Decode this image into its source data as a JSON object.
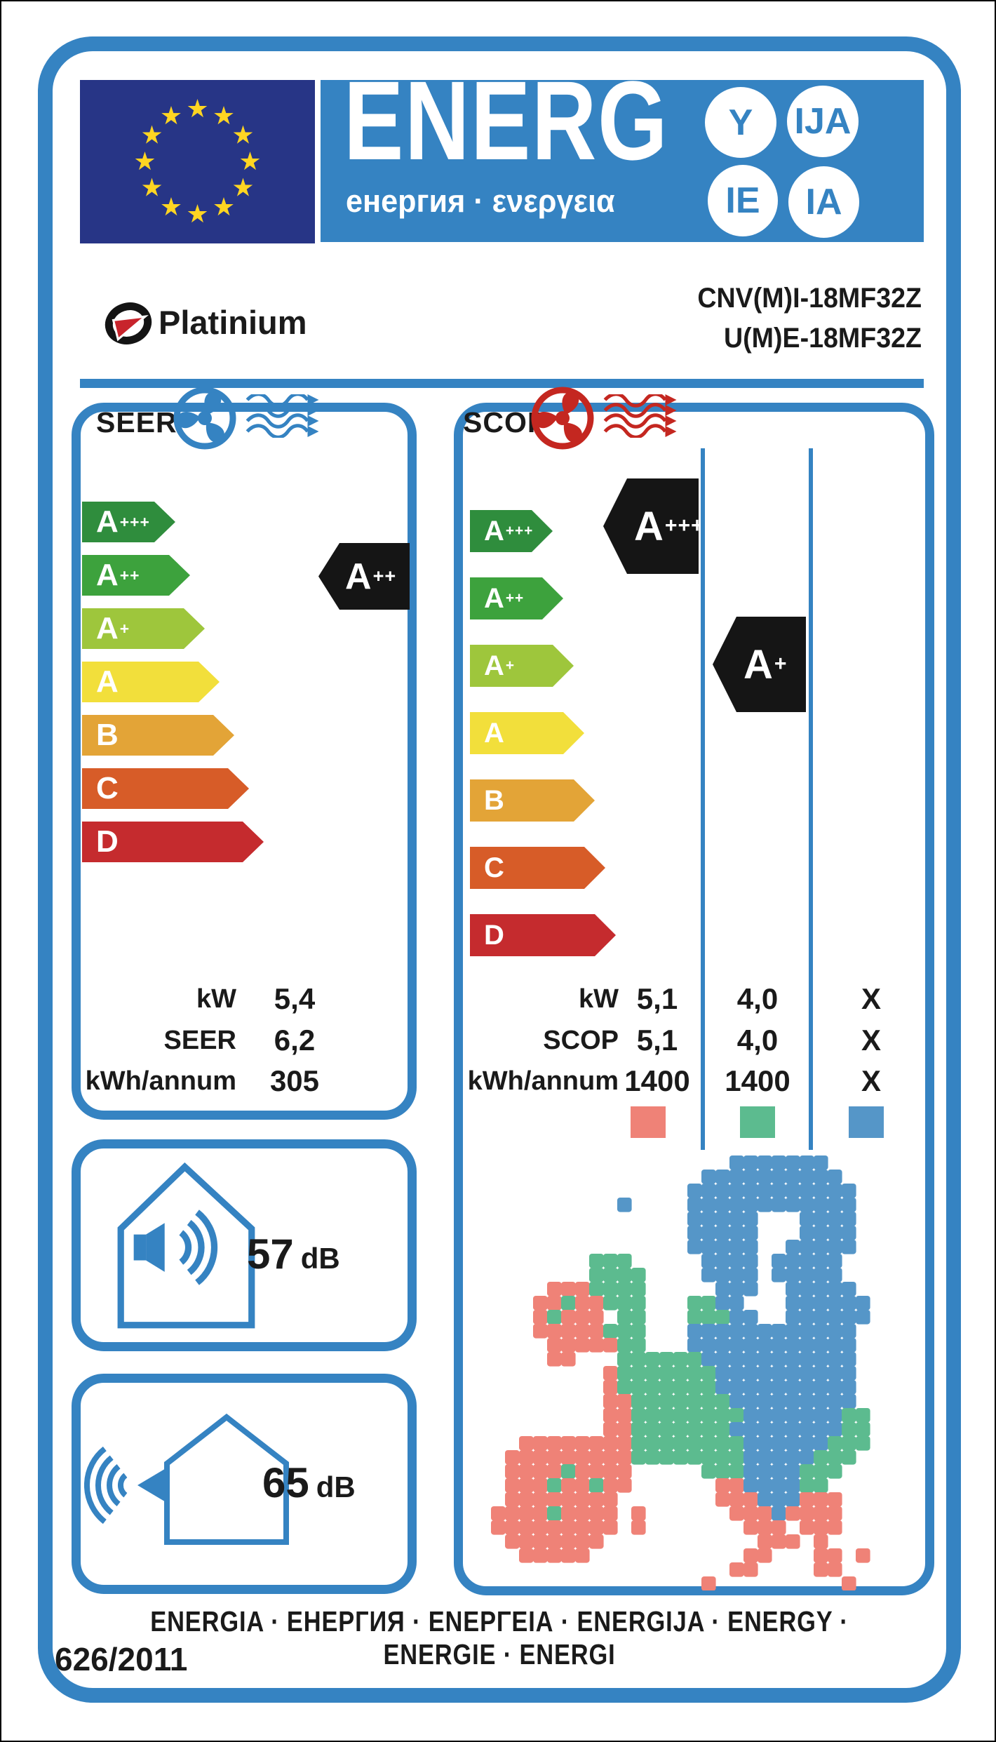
{
  "colors": {
    "blue": "#3583c2",
    "navy": "#273586",
    "star_yellow": "#ffd522",
    "red": "#c42720",
    "arrow_black": "#151515",
    "text": "#1a1a1a"
  },
  "header": {
    "brand_word": "ENERG",
    "subtitle": "енергия · ενεργεια",
    "endings": [
      "Y",
      "IJA",
      "IE",
      "IA"
    ]
  },
  "brand": {
    "name": "Platinium",
    "models": [
      "CNV(M)I-18MF32Z",
      "U(M)E-18MF32Z"
    ]
  },
  "energy_classes": [
    {
      "label": "A",
      "sup": "+++",
      "color": "#2f8d3d"
    },
    {
      "label": "A",
      "sup": "++",
      "color": "#3da23d"
    },
    {
      "label": "A",
      "sup": "+",
      "color": "#9ec63c"
    },
    {
      "label": "A",
      "sup": "",
      "color": "#f2df3b"
    },
    {
      "label": "B",
      "sup": "",
      "color": "#e3a437"
    },
    {
      "label": "C",
      "sup": "",
      "color": "#d75c28"
    },
    {
      "label": "D",
      "sup": "",
      "color": "#c52b2e"
    }
  ],
  "seer": {
    "title": "SEER",
    "rating": {
      "label": "A",
      "sup": "++"
    },
    "table": [
      {
        "label": "kW",
        "value": "5,4"
      },
      {
        "label": "SEER",
        "value": "6,2"
      },
      {
        "label": "kWh/annum",
        "value": "305"
      }
    ]
  },
  "scop": {
    "title": "SCOP",
    "ratings": [
      {
        "label": "A",
        "sup": "+++"
      },
      {
        "label": "A",
        "sup": "+"
      }
    ],
    "table": [
      {
        "label": "kW",
        "values": [
          "5,1",
          "4,0",
          "X"
        ]
      },
      {
        "label": "SCOP",
        "values": [
          "5,1",
          "4,0",
          "X"
        ]
      },
      {
        "label": "kWh/annum",
        "values": [
          "1400",
          "1400",
          "X"
        ]
      }
    ]
  },
  "noise": {
    "indoor": {
      "value": "57",
      "unit": "dB"
    },
    "outdoor": {
      "value": "65",
      "unit": "dB"
    }
  },
  "map": {
    "zones": [
      {
        "name": "warmer",
        "color": "#ef8277"
      },
      {
        "name": "average",
        "color": "#5cbb8f"
      },
      {
        "name": "colder",
        "color": "#5596c8"
      }
    ],
    "grid": [
      ".................BBBBBBB....",
      "...............BBBBBBBBBB...",
      "..............BBBBBBBBBBBB..",
      ".........B....BBBBBBBBBBBB..",
      "..............BBBBB...BBBB..",
      "..............BBBBB...BBBB..",
      "..............BBBBB..BBBBB..",
      ".......GGG.....BBBB.BBBBB...",
      ".......GGGG....BBBB.BBBBB...",
      "....RRRGGGG.....BBB..BBBBB..",
      "...RRGRRGGG...GGBB...BBBBBB.",
      "...RGRRR.GG...GGGBB..BBBBBB.",
      "...RRRRRGGG...BBBBBBBBBBBB..",
      "....RRRRRGG...BBBBBBBBBBBB..",
      "....RR...GGGGGGBBBBBBBBBBB..",
      "........RGGGGGGGBBBBBBBBBB..",
      "........RGGGGGGGBBBBBBBBBB..",
      "........RRGGGGGGGBBBBBBBBB..",
      "........RRGGGGGGGGBBBBBBBGG.",
      "........RRGGGGGGGBBBBBBBBGG.",
      "..RRRRRRRRGGGGGGGGBBBBBBGGG.",
      ".RRRRRRRRRGGGGGGGGBBBBBGGG..",
      ".RRRRGRRRR.....GGGBBBBGGG...",
      ".RRRGRRGRR......RRBBBBGG....",
      ".RRRRRRRR.......RRRBBBRRR...",
      "RRRRGRRRR.R......RRRBRRRR...",
      "RRRRRRRRR.R.......RRR.RRR...",
      ".RRRRRRR...........RRR.R....",
      "..RRRRR...........RR...RR.R.",
      ".................RR....RR...",
      "...............R.........R.."
    ]
  },
  "footer": {
    "languages": "ENERGIA · ЕНЕРГИЯ · ΕΝΕΡΓΕΙΑ · ENERGIJA · ENERGY · ENERGIE · ENERGI",
    "regulation": "626/2011"
  }
}
